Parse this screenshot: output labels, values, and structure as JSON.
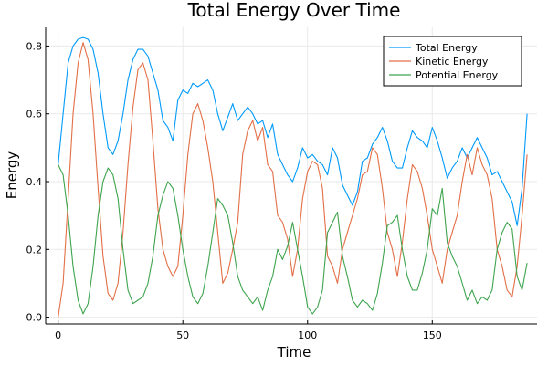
{
  "chart_data": {
    "type": "line",
    "title": "Total Energy Over Time",
    "xlabel": "Time",
    "ylabel": "Energy",
    "xlim": [
      -5,
      192
    ],
    "ylim": [
      -0.02,
      0.855
    ],
    "xticks": [
      0,
      50,
      100,
      150
    ],
    "yticks": [
      0.0,
      0.2,
      0.4,
      0.6,
      0.8
    ],
    "xtick_labels": [
      "0",
      "50",
      "100",
      "150"
    ],
    "ytick_labels": [
      "0.0",
      "0.2",
      "0.4",
      "0.6",
      "0.8"
    ],
    "grid": true,
    "legend_position": "top-right",
    "series": [
      {
        "name": "Total Energy",
        "color": "#009AFA",
        "x": [
          0,
          2,
          4,
          6,
          8,
          10,
          12,
          14,
          16,
          18,
          20,
          22,
          24,
          26,
          28,
          30,
          32,
          34,
          36,
          38,
          40,
          42,
          44,
          46,
          48,
          50,
          52,
          54,
          56,
          58,
          60,
          62,
          64,
          66,
          68,
          70,
          72,
          74,
          76,
          78,
          80,
          82,
          84,
          86,
          88,
          90,
          92,
          94,
          96,
          98,
          100,
          102,
          104,
          106,
          108,
          110,
          112,
          114,
          116,
          118,
          120,
          122,
          124,
          126,
          128,
          130,
          132,
          134,
          136,
          138,
          140,
          142,
          144,
          146,
          148,
          150,
          152,
          154,
          156,
          158,
          160,
          162,
          164,
          166,
          168,
          170,
          172,
          174,
          176,
          178,
          180,
          182,
          184,
          186,
          188
        ],
        "values": [
          0.45,
          0.6,
          0.75,
          0.8,
          0.82,
          0.825,
          0.82,
          0.79,
          0.72,
          0.6,
          0.5,
          0.48,
          0.52,
          0.6,
          0.7,
          0.76,
          0.79,
          0.79,
          0.77,
          0.72,
          0.67,
          0.58,
          0.56,
          0.52,
          0.64,
          0.67,
          0.66,
          0.69,
          0.68,
          0.69,
          0.7,
          0.67,
          0.6,
          0.55,
          0.59,
          0.63,
          0.58,
          0.6,
          0.62,
          0.6,
          0.57,
          0.58,
          0.53,
          0.57,
          0.48,
          0.45,
          0.42,
          0.4,
          0.44,
          0.5,
          0.47,
          0.48,
          0.46,
          0.45,
          0.42,
          0.5,
          0.47,
          0.39,
          0.36,
          0.33,
          0.37,
          0.46,
          0.47,
          0.51,
          0.53,
          0.56,
          0.52,
          0.46,
          0.44,
          0.44,
          0.5,
          0.55,
          0.53,
          0.52,
          0.5,
          0.56,
          0.52,
          0.47,
          0.41,
          0.44,
          0.46,
          0.5,
          0.47,
          0.5,
          0.53,
          0.5,
          0.47,
          0.42,
          0.43,
          0.4,
          0.37,
          0.34,
          0.27,
          0.38,
          0.6
        ]
      },
      {
        "name": "Kinetic Energy",
        "color": "#E26F46",
        "x": [
          0,
          2,
          4,
          6,
          8,
          10,
          12,
          14,
          16,
          18,
          20,
          22,
          24,
          26,
          28,
          30,
          32,
          34,
          36,
          38,
          40,
          42,
          44,
          46,
          48,
          50,
          52,
          54,
          56,
          58,
          60,
          62,
          64,
          66,
          68,
          70,
          72,
          74,
          76,
          78,
          80,
          82,
          84,
          86,
          88,
          90,
          92,
          94,
          96,
          98,
          100,
          102,
          104,
          106,
          108,
          110,
          112,
          114,
          116,
          118,
          120,
          122,
          124,
          126,
          128,
          130,
          132,
          134,
          136,
          138,
          140,
          142,
          144,
          146,
          148,
          150,
          152,
          154,
          156,
          158,
          160,
          162,
          164,
          166,
          168,
          170,
          172,
          174,
          176,
          178,
          180,
          182,
          184,
          186,
          188
        ],
        "values": [
          0.0,
          0.1,
          0.35,
          0.6,
          0.75,
          0.81,
          0.76,
          0.6,
          0.38,
          0.18,
          0.07,
          0.05,
          0.1,
          0.25,
          0.45,
          0.62,
          0.73,
          0.75,
          0.7,
          0.52,
          0.32,
          0.2,
          0.15,
          0.12,
          0.15,
          0.3,
          0.48,
          0.6,
          0.63,
          0.58,
          0.5,
          0.4,
          0.25,
          0.1,
          0.13,
          0.2,
          0.28,
          0.48,
          0.55,
          0.58,
          0.52,
          0.56,
          0.45,
          0.43,
          0.3,
          0.28,
          0.23,
          0.12,
          0.2,
          0.35,
          0.43,
          0.46,
          0.45,
          0.38,
          0.18,
          0.15,
          0.1,
          0.2,
          0.25,
          0.3,
          0.35,
          0.42,
          0.43,
          0.5,
          0.48,
          0.38,
          0.25,
          0.2,
          0.12,
          0.22,
          0.35,
          0.45,
          0.43,
          0.38,
          0.3,
          0.2,
          0.15,
          0.1,
          0.2,
          0.25,
          0.3,
          0.4,
          0.48,
          0.42,
          0.5,
          0.45,
          0.42,
          0.35,
          0.2,
          0.15,
          0.08,
          0.06,
          0.15,
          0.3,
          0.48
        ]
      },
      {
        "name": "Potential Energy",
        "color": "#3EA44E",
        "x": [
          0,
          2,
          4,
          6,
          8,
          10,
          12,
          14,
          16,
          18,
          20,
          22,
          24,
          26,
          28,
          30,
          32,
          34,
          36,
          38,
          40,
          42,
          44,
          46,
          48,
          50,
          52,
          54,
          56,
          58,
          60,
          62,
          64,
          66,
          68,
          70,
          72,
          74,
          76,
          78,
          80,
          82,
          84,
          86,
          88,
          90,
          92,
          94,
          96,
          98,
          100,
          102,
          104,
          106,
          108,
          110,
          112,
          114,
          116,
          118,
          120,
          122,
          124,
          126,
          128,
          130,
          132,
          134,
          136,
          138,
          140,
          142,
          144,
          146,
          148,
          150,
          152,
          154,
          156,
          158,
          160,
          162,
          164,
          166,
          168,
          170,
          172,
          174,
          176,
          178,
          180,
          182,
          184,
          186,
          188
        ],
        "values": [
          0.45,
          0.42,
          0.3,
          0.15,
          0.05,
          0.01,
          0.04,
          0.15,
          0.3,
          0.4,
          0.44,
          0.42,
          0.35,
          0.2,
          0.08,
          0.04,
          0.05,
          0.06,
          0.1,
          0.18,
          0.3,
          0.36,
          0.4,
          0.38,
          0.3,
          0.2,
          0.12,
          0.06,
          0.04,
          0.07,
          0.15,
          0.25,
          0.35,
          0.33,
          0.3,
          0.22,
          0.12,
          0.08,
          0.06,
          0.04,
          0.06,
          0.02,
          0.08,
          0.12,
          0.2,
          0.17,
          0.21,
          0.28,
          0.2,
          0.12,
          0.03,
          0.01,
          0.03,
          0.08,
          0.25,
          0.28,
          0.31,
          0.18,
          0.12,
          0.05,
          0.03,
          0.05,
          0.04,
          0.02,
          0.07,
          0.16,
          0.27,
          0.28,
          0.3,
          0.2,
          0.12,
          0.08,
          0.08,
          0.13,
          0.2,
          0.32,
          0.3,
          0.38,
          0.22,
          0.18,
          0.15,
          0.1,
          0.05,
          0.08,
          0.04,
          0.06,
          0.05,
          0.08,
          0.2,
          0.25,
          0.28,
          0.26,
          0.12,
          0.08,
          0.16
        ]
      }
    ]
  }
}
